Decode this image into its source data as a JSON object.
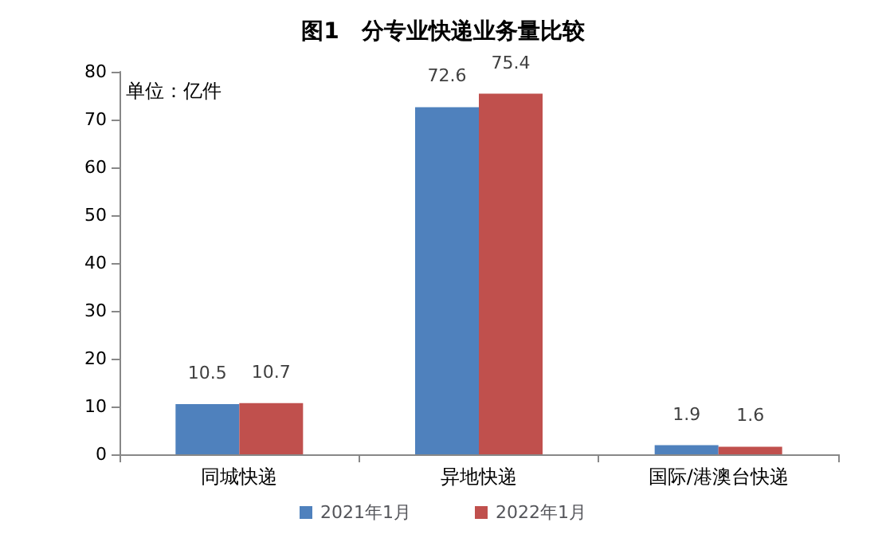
{
  "chart_data": {
    "type": "bar",
    "title": "图1　分专业快递业务量比较",
    "categories": [
      "同城快递",
      "异地快递",
      "国际/港澳台快递"
    ],
    "series": [
      {
        "name": "2021年1月",
        "color": "#4f81bd",
        "values": [
          10.5,
          72.6,
          1.9
        ]
      },
      {
        "name": "2022年1月",
        "color": "#c0504d",
        "values": [
          10.7,
          75.4,
          1.6
        ]
      }
    ],
    "ylim": [
      0,
      80
    ],
    "yticks": [
      0,
      10,
      20,
      30,
      40,
      50,
      60,
      70,
      80
    ],
    "annotations": [
      "单位：亿件"
    ],
    "data_labels": true,
    "grid": false,
    "legend": "bottom"
  }
}
